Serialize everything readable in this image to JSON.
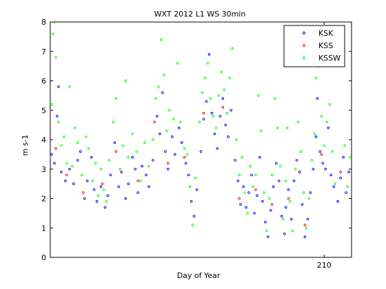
{
  "chart_data": {
    "type": "scatter",
    "title": "WXT 2012 L1 WS 30min",
    "xlabel": "Day of Year",
    "ylabel": "m s-1",
    "xlim": [
      200,
      211
    ],
    "ylim": [
      0,
      8
    ],
    "x_ticks": [
      210
    ],
    "y_ticks": [
      0,
      1,
      2,
      3,
      4,
      5,
      6,
      7,
      8
    ],
    "grid": false,
    "legend_position": "top-right",
    "series": [
      {
        "name": "KSK",
        "color": "#0000ff",
        "marker": "dot",
        "points": [
          [
            200.05,
            3.5
          ],
          [
            200.15,
            3.2
          ],
          [
            200.25,
            4.8
          ],
          [
            200.3,
            5.8
          ],
          [
            200.4,
            2.9
          ],
          [
            200.55,
            2.6
          ],
          [
            200.7,
            3.0
          ],
          [
            200.85,
            2.5
          ],
          [
            201.0,
            3.3
          ],
          [
            201.1,
            3.6
          ],
          [
            201.25,
            2.0
          ],
          [
            201.35,
            2.6
          ],
          [
            201.5,
            3.4
          ],
          [
            201.6,
            2.3
          ],
          [
            201.7,
            1.9
          ],
          [
            201.85,
            2.4
          ],
          [
            202.0,
            1.7
          ],
          [
            202.1,
            2.1
          ],
          [
            202.2,
            2.8
          ],
          [
            202.35,
            3.9
          ],
          [
            202.5,
            2.4
          ],
          [
            202.6,
            2.9
          ],
          [
            202.75,
            2.0
          ],
          [
            202.85,
            2.5
          ],
          [
            203.0,
            3.4
          ],
          [
            203.1,
            3.0
          ],
          [
            203.2,
            2.2
          ],
          [
            203.35,
            3.1
          ],
          [
            203.5,
            2.8
          ],
          [
            203.6,
            2.4
          ],
          [
            203.75,
            3.3
          ],
          [
            203.9,
            4.8
          ],
          [
            204.0,
            4.2
          ],
          [
            204.1,
            5.6
          ],
          [
            204.2,
            3.6
          ],
          [
            204.3,
            3.0
          ],
          [
            204.45,
            4.1
          ],
          [
            204.55,
            3.5
          ],
          [
            204.7,
            4.4
          ],
          [
            204.8,
            3.9
          ],
          [
            204.95,
            3.2
          ],
          [
            205.05,
            2.8
          ],
          [
            205.15,
            1.9
          ],
          [
            205.25,
            1.4
          ],
          [
            205.35,
            2.3
          ],
          [
            205.5,
            3.6
          ],
          [
            205.6,
            4.7
          ],
          [
            205.7,
            5.3
          ],
          [
            205.8,
            6.9
          ],
          [
            205.9,
            4.9
          ],
          [
            206.0,
            4.2
          ],
          [
            206.1,
            3.7
          ],
          [
            206.2,
            4.8
          ],
          [
            206.3,
            5.4
          ],
          [
            206.4,
            4.5
          ],
          [
            206.5,
            4.1
          ],
          [
            206.6,
            5.0
          ],
          [
            206.75,
            3.3
          ],
          [
            206.85,
            2.6
          ],
          [
            206.95,
            1.8
          ],
          [
            207.05,
            2.4
          ],
          [
            207.15,
            1.7
          ],
          [
            207.25,
            2.2
          ],
          [
            207.35,
            2.8
          ],
          [
            207.45,
            1.5
          ],
          [
            207.55,
            2.1
          ],
          [
            207.65,
            3.4
          ],
          [
            207.75,
            1.9
          ],
          [
            207.85,
            1.2
          ],
          [
            207.95,
            0.7
          ],
          [
            208.05,
            1.6
          ],
          [
            208.15,
            2.4
          ],
          [
            208.25,
            3.2
          ],
          [
            208.35,
            2.6
          ],
          [
            208.45,
            1.4
          ],
          [
            208.55,
            0.8
          ],
          [
            208.6,
            1.7
          ],
          [
            208.7,
            2.3
          ],
          [
            208.8,
            1.3
          ],
          [
            208.9,
            2.6
          ],
          [
            209.0,
            3.3
          ],
          [
            209.1,
            2.9
          ],
          [
            209.2,
            1.8
          ],
          [
            209.3,
            0.7
          ],
          [
            209.4,
            1.3
          ],
          [
            209.5,
            2.2
          ],
          [
            209.6,
            3.0
          ],
          [
            209.7,
            4.1
          ],
          [
            209.75,
            5.4
          ],
          [
            209.85,
            3.6
          ],
          [
            209.95,
            3.2
          ],
          [
            210.05,
            3.0
          ],
          [
            210.15,
            4.4
          ],
          [
            210.25,
            2.8
          ],
          [
            210.35,
            2.4
          ],
          [
            210.5,
            1.9
          ],
          [
            210.6,
            2.7
          ],
          [
            210.7,
            3.4
          ],
          [
            210.8,
            2.2
          ],
          [
            210.9,
            2.9
          ]
        ]
      },
      {
        "name": "KSS",
        "color": "#ff0000",
        "marker": "dot",
        "points": [
          [
            200.2,
            3.7
          ],
          [
            200.6,
            2.8
          ],
          [
            201.2,
            2.2
          ],
          [
            201.9,
            2.5
          ],
          [
            202.4,
            3.6
          ],
          [
            203.2,
            2.6
          ],
          [
            203.8,
            4.6
          ],
          [
            204.3,
            3.2
          ],
          [
            204.9,
            3.4
          ],
          [
            205.6,
            4.9
          ],
          [
            206.3,
            5.1
          ],
          [
            206.9,
            2.0
          ],
          [
            207.5,
            2.3
          ],
          [
            208.1,
            1.8
          ],
          [
            208.7,
            2.0
          ],
          [
            209.3,
            1.1
          ],
          [
            209.9,
            3.5
          ],
          [
            210.6,
            2.9
          ]
        ]
      },
      {
        "name": "KSSW",
        "color": "#00ff00",
        "marker": "dot",
        "points": [
          [
            200.05,
            5.2
          ],
          [
            200.1,
            7.6
          ],
          [
            200.15,
            8.0
          ],
          [
            200.2,
            6.8
          ],
          [
            200.3,
            4.6
          ],
          [
            200.4,
            3.8
          ],
          [
            200.5,
            4.1
          ],
          [
            200.6,
            3.2
          ],
          [
            200.7,
            5.8
          ],
          [
            200.8,
            3.1
          ],
          [
            200.9,
            4.4
          ],
          [
            201.0,
            3.9
          ],
          [
            201.15,
            2.8
          ],
          [
            201.3,
            4.1
          ],
          [
            201.4,
            3.7
          ],
          [
            201.55,
            2.6
          ],
          [
            201.65,
            3.2
          ],
          [
            201.75,
            2.1
          ],
          [
            201.85,
            3.0
          ],
          [
            201.95,
            2.3
          ],
          [
            202.05,
            1.9
          ],
          [
            202.15,
            3.3
          ],
          [
            202.3,
            4.6
          ],
          [
            202.4,
            5.4
          ],
          [
            202.55,
            3.0
          ],
          [
            202.65,
            3.8
          ],
          [
            202.75,
            6.0
          ],
          [
            202.85,
            3.4
          ],
          [
            203.0,
            4.2
          ],
          [
            203.15,
            3.6
          ],
          [
            203.3,
            2.6
          ],
          [
            203.45,
            3.9
          ],
          [
            203.6,
            3.1
          ],
          [
            203.75,
            4.0
          ],
          [
            203.85,
            5.4
          ],
          [
            203.95,
            5.8
          ],
          [
            204.05,
            7.4
          ],
          [
            204.15,
            6.2
          ],
          [
            204.25,
            4.3
          ],
          [
            204.35,
            5.0
          ],
          [
            204.5,
            4.7
          ],
          [
            204.65,
            6.6
          ],
          [
            204.75,
            4.6
          ],
          [
            204.9,
            3.7
          ],
          [
            205.0,
            3.5
          ],
          [
            205.1,
            2.4
          ],
          [
            205.2,
            1.1
          ],
          [
            205.3,
            2.7
          ],
          [
            205.45,
            4.6
          ],
          [
            205.55,
            5.6
          ],
          [
            205.65,
            6.1
          ],
          [
            205.75,
            6.6
          ],
          [
            205.85,
            5.4
          ],
          [
            205.95,
            4.8
          ],
          [
            206.05,
            4.4
          ],
          [
            206.15,
            5.5
          ],
          [
            206.25,
            6.3
          ],
          [
            206.35,
            5.7
          ],
          [
            206.45,
            4.9
          ],
          [
            206.55,
            6.1
          ],
          [
            206.65,
            7.1
          ],
          [
            206.8,
            4.0
          ],
          [
            206.9,
            2.8
          ],
          [
            207.0,
            3.4
          ],
          [
            207.1,
            2.2
          ],
          [
            207.2,
            1.5
          ],
          [
            207.3,
            3.1
          ],
          [
            207.4,
            2.4
          ],
          [
            207.5,
            2.8
          ],
          [
            207.6,
            5.5
          ],
          [
            207.7,
            4.3
          ],
          [
            207.8,
            2.2
          ],
          [
            207.9,
            0.9
          ],
          [
            208.0,
            2.0
          ],
          [
            208.1,
            2.8
          ],
          [
            208.2,
            5.4
          ],
          [
            208.3,
            4.4
          ],
          [
            208.4,
            3.1
          ],
          [
            208.5,
            1.3
          ],
          [
            208.6,
            2.6
          ],
          [
            208.65,
            4.4
          ],
          [
            208.75,
            1.9
          ],
          [
            208.85,
            0.9
          ],
          [
            208.95,
            3.0
          ],
          [
            209.05,
            4.6
          ],
          [
            209.15,
            3.6
          ],
          [
            209.25,
            2.2
          ],
          [
            209.35,
            1.0
          ],
          [
            209.45,
            2.0
          ],
          [
            209.55,
            3.3
          ],
          [
            209.65,
            4.2
          ],
          [
            209.7,
            6.1
          ],
          [
            209.8,
            6.5
          ],
          [
            209.9,
            4.8
          ],
          [
            210.0,
            3.8
          ],
          [
            210.1,
            4.6
          ],
          [
            210.2,
            5.2
          ],
          [
            210.3,
            3.6
          ],
          [
            210.4,
            2.5
          ],
          [
            210.55,
            6.5
          ],
          [
            210.65,
            6.8
          ],
          [
            210.75,
            3.8
          ],
          [
            210.85,
            2.4
          ],
          [
            210.95,
            3.4
          ]
        ]
      }
    ]
  }
}
